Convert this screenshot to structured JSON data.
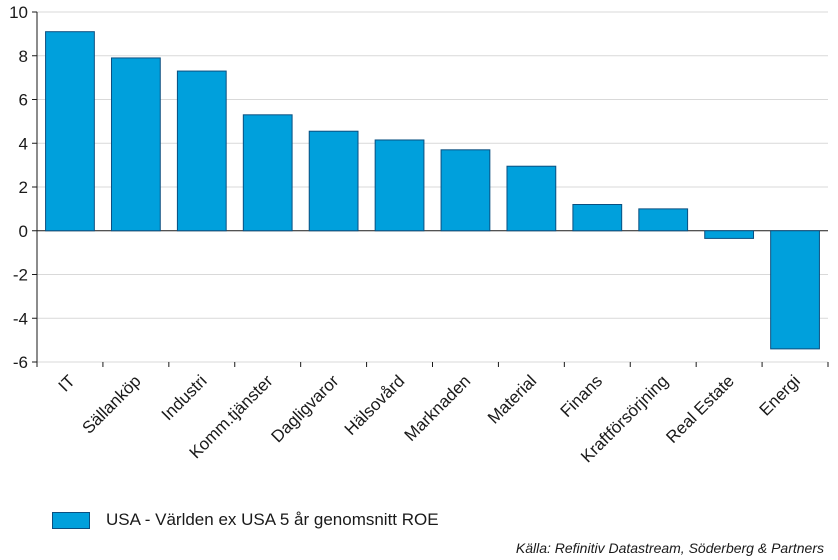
{
  "chart_data": {
    "type": "bar",
    "categories": [
      "IT",
      "Sällanköp",
      "Industri",
      "Komm.tjänster",
      "Dagligvaror",
      "Hälsovård",
      "Marknaden",
      "Material",
      "Finans",
      "Kraftförsörjning",
      "Real Estate",
      "Energi"
    ],
    "series": [
      {
        "name": "USA - Världen ex USA 5 år genomsnitt ROE",
        "values": [
          9.1,
          7.9,
          7.3,
          5.3,
          4.55,
          4.15,
          3.7,
          2.95,
          1.2,
          1.0,
          -0.35,
          -5.4
        ]
      }
    ],
    "yticks": [
      10,
      8,
      6,
      4,
      2,
      0,
      -2,
      -4,
      -6
    ],
    "ylim": [
      -6,
      10
    ],
    "grid": true,
    "bar_color": "#00a0dc",
    "bar_edge_color": "#0a4f80",
    "legend_position": "bottom-left"
  },
  "source": "Källa: Refinitiv Datastream, Söderberg & Partners"
}
